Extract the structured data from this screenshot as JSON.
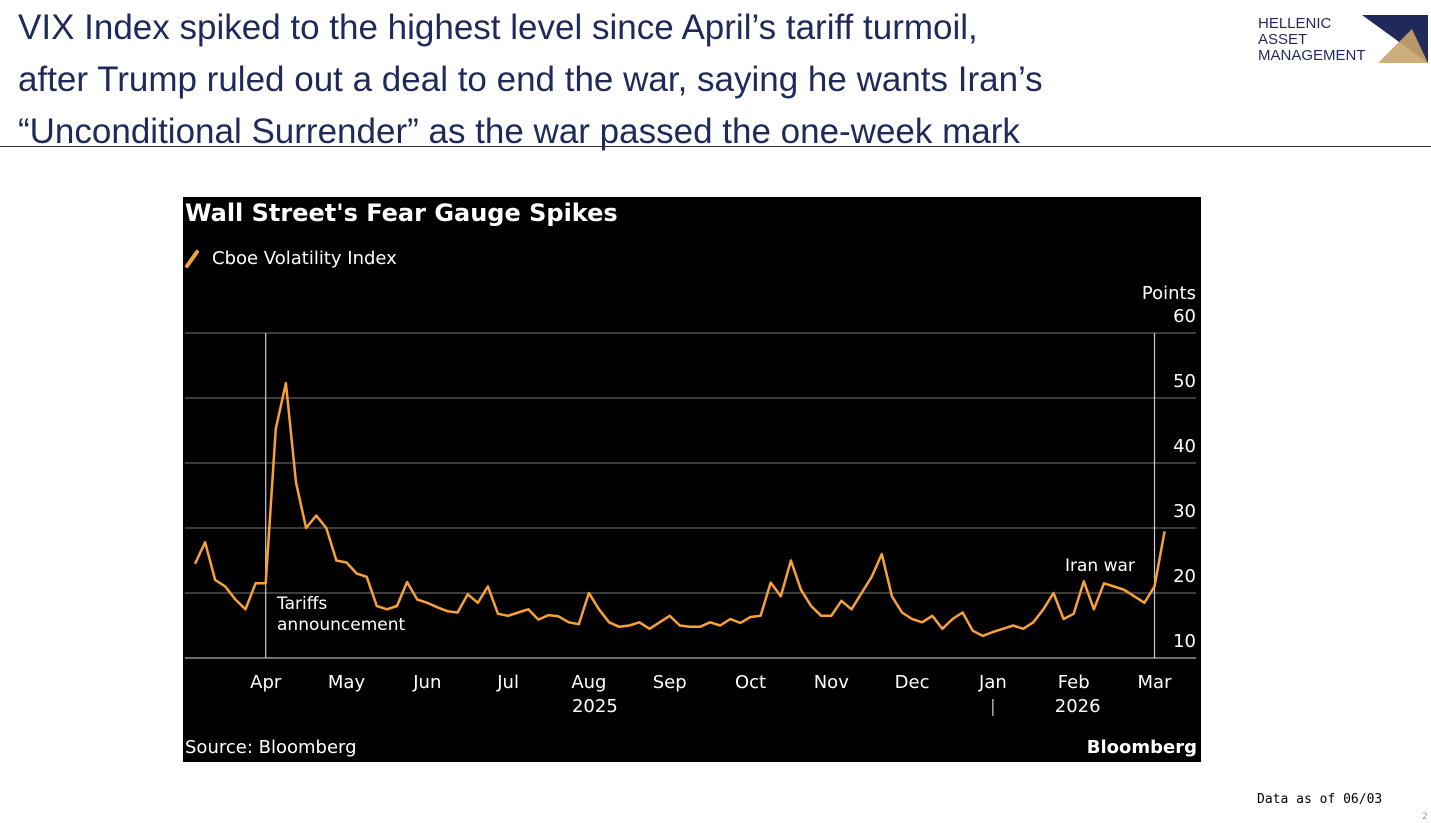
{
  "header": {
    "title_lines": [
      "VIX Index spiked to the highest level since April’s tariff turmoil,",
      "after Trump ruled out a deal to end the war, saying he wants Iran’s",
      "“Unconditional Surrender” as the war passed the one-week mark"
    ],
    "logo_lines": [
      "HELLENIC",
      "ASSET",
      "MANAGEMENT"
    ]
  },
  "chart_data": {
    "type": "line",
    "title": "Wall Street's Fear Gauge Spikes",
    "y_label": "Points",
    "categories": [
      null,
      null,
      null,
      null,
      null,
      null,
      null,
      "Apr",
      null,
      null,
      null,
      null,
      null,
      null,
      null,
      "May",
      null,
      null,
      null,
      null,
      null,
      null,
      null,
      "Jun",
      null,
      null,
      null,
      null,
      null,
      null,
      null,
      "Jul",
      null,
      null,
      null,
      null,
      null,
      null,
      null,
      "Aug",
      null,
      null,
      null,
      null,
      null,
      null,
      null,
      "Sep",
      null,
      null,
      null,
      null,
      null,
      null,
      null,
      "Oct",
      null,
      null,
      null,
      null,
      null,
      null,
      null,
      "Nov",
      null,
      null,
      null,
      null,
      null,
      null,
      null,
      "Dec",
      null,
      null,
      null,
      null,
      null,
      null,
      null,
      "Jan",
      null,
      null,
      null,
      null,
      null,
      null,
      null,
      "Feb",
      null,
      null,
      null,
      null,
      null,
      null,
      null,
      "Mar",
      null
    ],
    "year_labels": [
      "2025",
      "2026"
    ],
    "series": [
      {
        "name": "Cboe Volatility Index",
        "color": "#f7a13a",
        "values": [
          24.5,
          27.8,
          22,
          21,
          19,
          17.5,
          21.5,
          21.5,
          45.3,
          52.3,
          37,
          30,
          31.9,
          30,
          25,
          24.7,
          23,
          22.5,
          18,
          17.5,
          18,
          21.7,
          19,
          18.5,
          17.8,
          17.2,
          17,
          19.8,
          18.5,
          21,
          16.8,
          16.5,
          17,
          17.5,
          15.9,
          16.6,
          16.4,
          15.5,
          15.2,
          20,
          17.5,
          15.5,
          14.8,
          15,
          15.5,
          14.5,
          15.5,
          16.5,
          15,
          14.8,
          14.8,
          15.5,
          15,
          16,
          15.4,
          16.3,
          16.5,
          21.6,
          19.5,
          25,
          20.5,
          18,
          16.5,
          16.5,
          18.8,
          17.5,
          20,
          22.5,
          26,
          19.5,
          17,
          16,
          15.5,
          16.5,
          14.5,
          16,
          17,
          14.2,
          13.4,
          14,
          14.5,
          15,
          14.5,
          15.5,
          17.5,
          20,
          16,
          16.8,
          21.8,
          17.5,
          21.5,
          21,
          20.5,
          19.5,
          18.5,
          21,
          29.5
        ]
      }
    ],
    "ylim": [
      10,
      60
    ],
    "yticks": [
      10,
      20,
      30,
      40,
      50,
      60
    ],
    "grid": true,
    "annotations": [
      {
        "text": "Tariffs announcement"
      },
      {
        "text": "Iran war"
      }
    ],
    "source": "Source: Bloomberg",
    "brand": "Bloomberg"
  },
  "footer": {
    "note": "Data as of 06/03",
    "page_number": "2"
  }
}
